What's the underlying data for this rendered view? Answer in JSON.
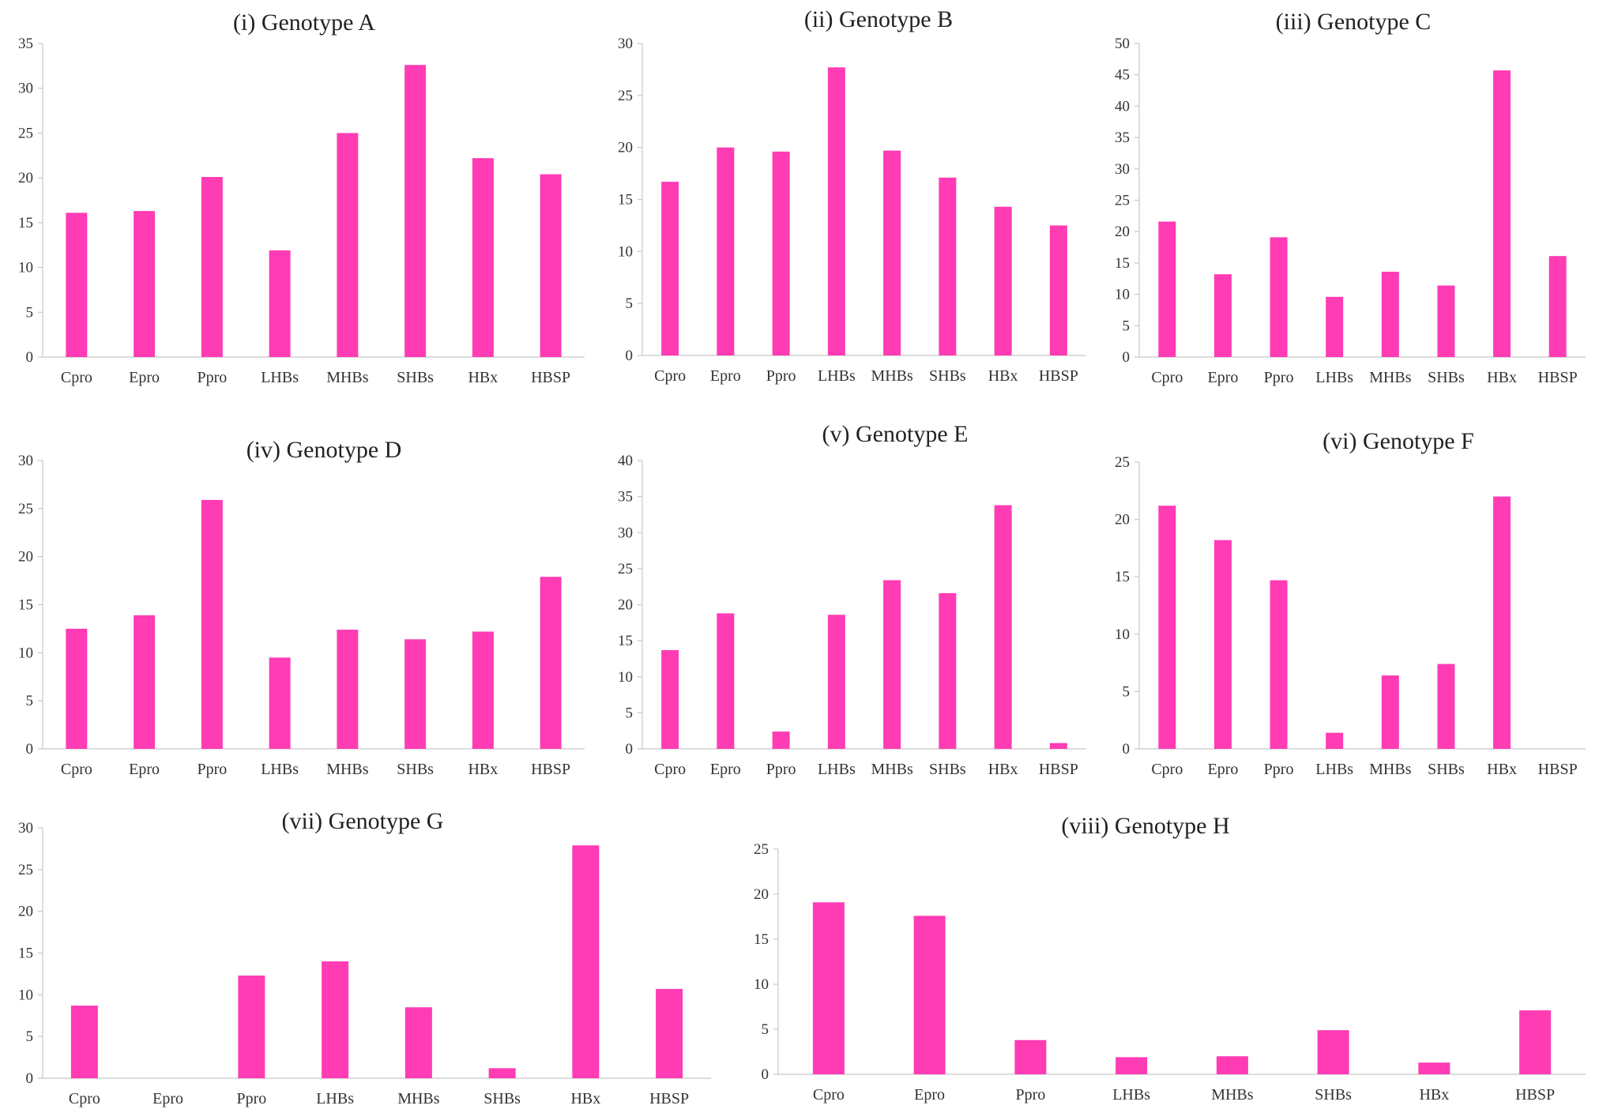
{
  "colors": {
    "bar": "#ff3cb4",
    "axis": "#c8c8c8",
    "text": "#333333"
  },
  "chart_data": [
    {
      "type": "bar",
      "title": "(i) Genotype A",
      "categories": [
        "Cpro",
        "Epro",
        "Ppro",
        "LHBs",
        "MHBs",
        "SHBs",
        "HBx",
        "HBSP"
      ],
      "values": [
        16.1,
        16.3,
        20.1,
        11.9,
        25.0,
        32.6,
        22.2,
        20.4
      ],
      "ylim": [
        0,
        35
      ],
      "yticks": [
        "0",
        "5",
        "10",
        "15",
        "20",
        "25",
        "30",
        "35"
      ],
      "xlabel": "",
      "ylabel": ""
    },
    {
      "type": "bar",
      "title": "(ii) Genotype B",
      "categories": [
        "Cpro",
        "Epro",
        "Ppro",
        "LHBs",
        "MHBs",
        "SHBs",
        "HBx",
        "HBSP"
      ],
      "values": [
        16.7,
        20.0,
        19.6,
        27.7,
        19.7,
        17.1,
        14.3,
        12.5
      ],
      "ylim": [
        0,
        30
      ],
      "yticks": [
        "0",
        "5",
        "10",
        "15",
        "20",
        "25",
        "30"
      ],
      "xlabel": "",
      "ylabel": ""
    },
    {
      "type": "bar",
      "title": "(iii) Genotype C",
      "categories": [
        "Cpro",
        "Epro",
        "Ppro",
        "LHBs",
        "MHBs",
        "SHBs",
        "HBx",
        "HBSP"
      ],
      "values": [
        21.6,
        13.2,
        19.1,
        9.6,
        13.6,
        11.4,
        45.7,
        16.1
      ],
      "ylim": [
        0,
        50
      ],
      "yticks": [
        "0",
        "5",
        "10",
        "15",
        "20",
        "25",
        "30",
        "35",
        "40",
        "45",
        "50"
      ],
      "xlabel": "",
      "ylabel": ""
    },
    {
      "type": "bar",
      "title": "(iv) Genotype D",
      "categories": [
        "Cpro",
        "Epro",
        "Ppro",
        "LHBs",
        "MHBs",
        "SHBs",
        "HBx",
        "HBSP"
      ],
      "values": [
        12.5,
        13.9,
        25.9,
        9.5,
        12.4,
        11.4,
        12.2,
        17.9
      ],
      "ylim": [
        0,
        30
      ],
      "yticks": [
        "0",
        "5",
        "10",
        "15",
        "20",
        "25",
        "30"
      ],
      "xlabel": "",
      "ylabel": ""
    },
    {
      "type": "bar",
      "title": "(v) Genotype E",
      "categories": [
        "Cpro",
        "Epro",
        "Ppro",
        "LHBs",
        "MHBs",
        "SHBs",
        "HBx",
        "HBSP"
      ],
      "values": [
        13.7,
        18.8,
        2.4,
        18.6,
        23.4,
        21.6,
        33.8,
        0.8
      ],
      "ylim": [
        0,
        40
      ],
      "yticks": [
        "0",
        "5",
        "10",
        "15",
        "20",
        "25",
        "30",
        "35",
        "40"
      ],
      "xlabel": "",
      "ylabel": ""
    },
    {
      "type": "bar",
      "title": "(vi) Genotype F",
      "categories": [
        "Cpro",
        "Epro",
        "Ppro",
        "LHBs",
        "MHBs",
        "SHBs",
        "HBx",
        "HBSP"
      ],
      "values": [
        21.2,
        18.2,
        14.7,
        1.4,
        6.4,
        7.4,
        22.0,
        0
      ],
      "ylim": [
        0,
        25
      ],
      "yticks": [
        "0",
        "5",
        "10",
        "15",
        "20",
        "25"
      ],
      "xlabel": "",
      "ylabel": ""
    },
    {
      "type": "bar",
      "title": "(vii) Genotype G",
      "categories": [
        "Cpro",
        "Epro",
        "Ppro",
        "LHBs",
        "MHBs",
        "SHBs",
        "HBx",
        "HBSP"
      ],
      "values": [
        8.7,
        0,
        12.3,
        14.0,
        8.5,
        1.2,
        27.9,
        10.7
      ],
      "ylim": [
        0,
        30
      ],
      "yticks": [
        "0",
        "5",
        "10",
        "15",
        "20",
        "25",
        "30"
      ],
      "xlabel": "",
      "ylabel": ""
    },
    {
      "type": "bar",
      "title": "(viii) Genotype H",
      "categories": [
        "Cpro",
        "Epro",
        "Ppro",
        "LHBs",
        "MHBs",
        "SHBs",
        "HBx",
        "HBSP"
      ],
      "values": [
        19.1,
        17.6,
        3.8,
        1.9,
        2.0,
        4.9,
        1.3,
        7.1
      ],
      "ylim": [
        0,
        25
      ],
      "yticks": [
        "0",
        "5",
        "10",
        "15",
        "20",
        "25"
      ],
      "xlabel": "",
      "ylabel": ""
    }
  ]
}
